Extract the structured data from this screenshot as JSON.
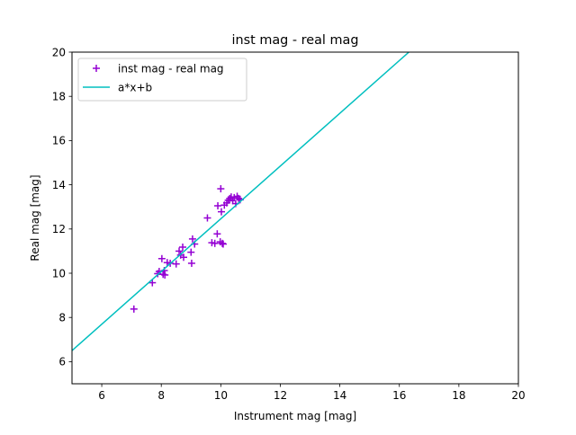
{
  "chart_data": {
    "type": "scatter",
    "title": "inst mag - real mag",
    "xlabel": "Instrument mag [mag]",
    "ylabel": "Real mag [mag]",
    "xlim": [
      5,
      20
    ],
    "ylim": [
      5,
      20
    ],
    "xticks": [
      6,
      8,
      10,
      12,
      14,
      16,
      18,
      20
    ],
    "yticks": [
      6,
      8,
      10,
      12,
      14,
      16,
      18,
      20
    ],
    "grid": false,
    "legend_position": "upper-left",
    "series": [
      {
        "name": "inst mag - real mag",
        "kind": "scatter",
        "marker": "plus",
        "color": "#9400d3",
        "points": [
          [
            7.08,
            8.38
          ],
          [
            7.7,
            9.57
          ],
          [
            7.88,
            9.98
          ],
          [
            7.93,
            10.08
          ],
          [
            8.02,
            10.66
          ],
          [
            8.06,
            9.95
          ],
          [
            8.1,
            10.12
          ],
          [
            8.12,
            9.92
          ],
          [
            8.2,
            10.48
          ],
          [
            8.3,
            10.45
          ],
          [
            8.5,
            10.42
          ],
          [
            8.6,
            11.0
          ],
          [
            8.65,
            10.82
          ],
          [
            8.72,
            11.18
          ],
          [
            8.75,
            10.72
          ],
          [
            9.0,
            10.95
          ],
          [
            9.02,
            10.45
          ],
          [
            9.05,
            11.55
          ],
          [
            9.12,
            11.32
          ],
          [
            9.55,
            12.5
          ],
          [
            9.7,
            11.38
          ],
          [
            9.8,
            11.35
          ],
          [
            9.88,
            11.78
          ],
          [
            9.9,
            13.05
          ],
          [
            9.98,
            11.42
          ],
          [
            10.0,
            13.82
          ],
          [
            10.02,
            12.78
          ],
          [
            10.05,
            11.35
          ],
          [
            10.08,
            11.32
          ],
          [
            10.12,
            13.08
          ],
          [
            10.2,
            13.18
          ],
          [
            10.25,
            13.3
          ],
          [
            10.3,
            13.38
          ],
          [
            10.35,
            13.45
          ],
          [
            10.4,
            13.28
          ],
          [
            10.45,
            13.42
          ],
          [
            10.5,
            13.15
          ],
          [
            10.55,
            13.48
          ],
          [
            10.6,
            13.38
          ],
          [
            10.65,
            13.32
          ]
        ]
      },
      {
        "name": "a*x+b",
        "kind": "line",
        "color": "#00bfbf",
        "points": [
          [
            5,
            6.5
          ],
          [
            16.32,
            20
          ]
        ]
      }
    ]
  }
}
